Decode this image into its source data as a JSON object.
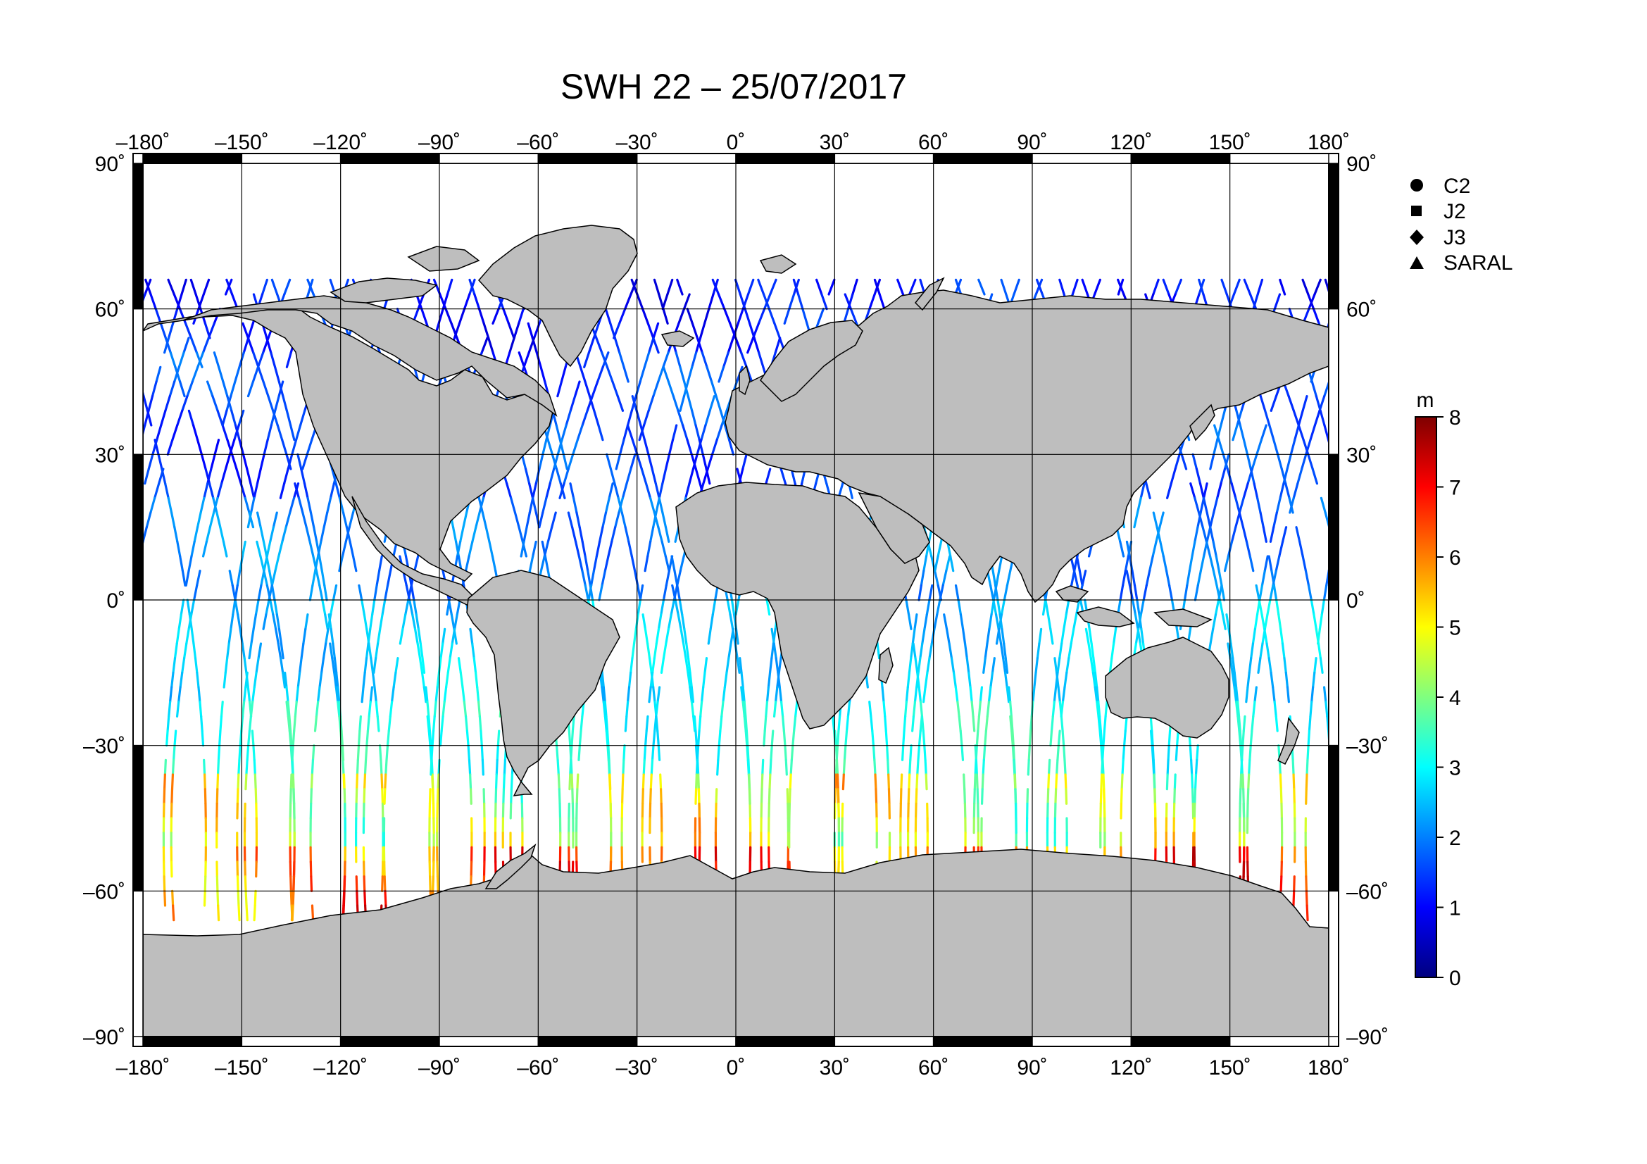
{
  "title": "SWH 22 – 25/07/2017",
  "colors": {
    "land": "#bebebe",
    "coast": "#000000",
    "frame": "#000000",
    "grid": "#000000"
  },
  "map_data": {
    "projection": "equirectangular",
    "lon_range": [
      -180,
      180
    ],
    "lat_range": [
      -90,
      90
    ],
    "grid_step_lon": 30,
    "grid_step_lat": 30,
    "lon_ticks": [
      "–180˚",
      "–150˚",
      "–120˚",
      "–90˚",
      "–60˚",
      "–30˚",
      "0˚",
      "30˚",
      "60˚",
      "90˚",
      "120˚",
      "150˚",
      "180˚"
    ],
    "lat_ticks": [
      "90˚",
      "60˚",
      "30˚",
      "0˚",
      "–30˚",
      "–60˚",
      "–90˚"
    ],
    "legend": {
      "placement": "top-right",
      "items": [
        {
          "label": "C2",
          "marker": "circle-icon"
        },
        {
          "label": "J2",
          "marker": "square-icon"
        },
        {
          "label": "J3",
          "marker": "diamond-icon"
        },
        {
          "label": "SARAL",
          "marker": "triangle-icon"
        }
      ]
    },
    "colorbar": {
      "unit": "m",
      "min": 0,
      "max": 8,
      "ticks": [
        "0",
        "1",
        "2",
        "3",
        "4",
        "5",
        "6",
        "7",
        "8"
      ],
      "colormap": "jet"
    },
    "swh_zones": [
      {
        "lat": [
          50,
          70
        ],
        "swh": 1.2
      },
      {
        "lat": [
          20,
          50
        ],
        "swh": 1.5
      },
      {
        "lat": [
          0,
          20
        ],
        "swh": 2.0
      },
      {
        "lat": [
          -20,
          0
        ],
        "swh": 2.6
      },
      {
        "lat": [
          -35,
          -20
        ],
        "swh": 3.2
      },
      {
        "lat": [
          -50,
          -35
        ],
        "swh": 4.6
      },
      {
        "lat": [
          -66,
          -50
        ],
        "swh": 6.2
      }
    ]
  }
}
